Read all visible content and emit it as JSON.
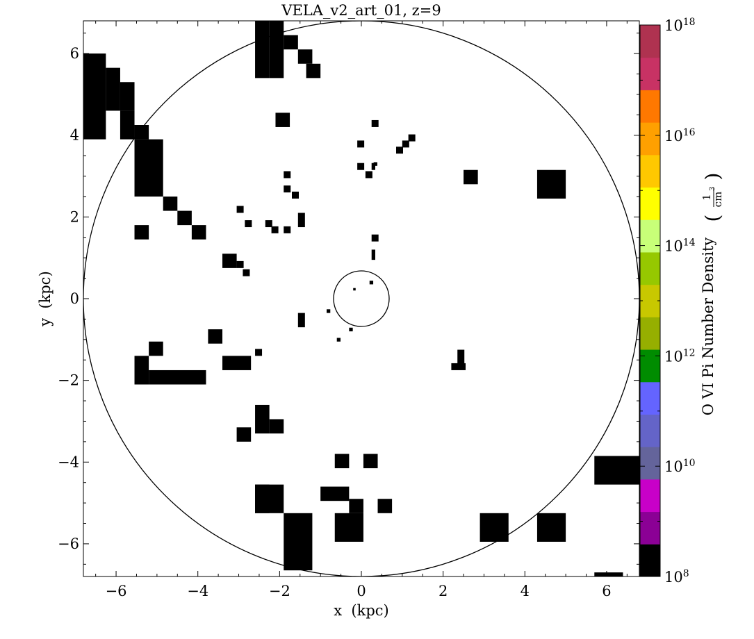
{
  "chart_data": {
    "type": "heatmap",
    "title": "VELA_v2_art_01, z=9",
    "xlabel": "x  (kpc)",
    "ylabel": "y  (kpc)",
    "xlim": [
      -6.8,
      6.8
    ],
    "ylim": [
      -6.8,
      6.8
    ],
    "x_ticks": [
      -6,
      -4,
      -2,
      0,
      2,
      4,
      6
    ],
    "y_ticks": [
      -6,
      -4,
      -2,
      0,
      2,
      4,
      6
    ],
    "x_tick_labels": [
      "−6",
      "−4",
      "−2",
      "0",
      "2",
      "4",
      "6"
    ],
    "y_tick_labels": [
      "−6",
      "−4",
      "−2",
      "0",
      "2",
      "4",
      "6"
    ],
    "colorbar": {
      "label": "O VI Pi Number Density",
      "unit_numerator": "1",
      "unit_denominator": "cm",
      "unit_exponent": "3",
      "scale": "log",
      "range": [
        100000000.0,
        1e+18
      ],
      "ticks": [
        {
          "value": 8,
          "base": "10",
          "exp": "8"
        },
        {
          "value": 10,
          "base": "10",
          "exp": "10"
        },
        {
          "value": 12,
          "base": "10",
          "exp": "12"
        },
        {
          "value": 14,
          "base": "10",
          "exp": "14"
        },
        {
          "value": 16,
          "base": "10",
          "exp": "16"
        },
        {
          "value": 18,
          "base": "10",
          "exp": "18"
        }
      ],
      "colors": [
        "#000000",
        "#8b0095",
        "#c800c8",
        "#64649b",
        "#6464c8",
        "#6464ff",
        "#008c00",
        "#96af00",
        "#c8c800",
        "#96c800",
        "#c8ff78",
        "#ffff00",
        "#ffc800",
        "#ffa000",
        "#ff7800",
        "#c83264",
        "#af3250"
      ]
    },
    "circles": [
      {
        "cx": 0,
        "cy": 0,
        "r": 6.8
      },
      {
        "cx": 0,
        "cy": 0,
        "r": 0.68
      }
    ],
    "cells": [
      [
        -2.6,
        5.4,
        0.35,
        1.4
      ],
      [
        -2.25,
        5.4,
        0.35,
        1.4
      ],
      [
        -1.9,
        6.1,
        0.35,
        0.35
      ],
      [
        -1.55,
        5.75,
        0.35,
        0.35
      ],
      [
        -1.35,
        5.4,
        0.35,
        0.35
      ],
      [
        -6.8,
        3.9,
        0.55,
        2.1
      ],
      [
        -6.25,
        4.6,
        0.35,
        1.05
      ],
      [
        -5.9,
        4.6,
        0.35,
        0.7
      ],
      [
        -5.9,
        3.9,
        0.35,
        0.7
      ],
      [
        -5.55,
        3.9,
        0.35,
        0.35
      ],
      [
        -5.55,
        2.5,
        0.7,
        1.4
      ],
      [
        -4.85,
        2.15,
        0.35,
        0.35
      ],
      [
        -4.5,
        1.8,
        0.35,
        0.35
      ],
      [
        -4.15,
        1.45,
        0.35,
        0.35
      ],
      [
        -5.55,
        1.45,
        0.35,
        0.35
      ],
      [
        -2.1,
        4.2,
        0.35,
        0.35
      ],
      [
        0.25,
        4.2,
        0.17,
        0.17
      ],
      [
        -0.1,
        3.7,
        0.17,
        0.17
      ],
      [
        -0.1,
        3.15,
        0.17,
        0.17
      ],
      [
        0.1,
        2.95,
        0.17,
        0.17
      ],
      [
        0.25,
        3.15,
        0.09,
        0.17
      ],
      [
        0.3,
        3.25,
        0.09,
        0.09
      ],
      [
        0.85,
        3.55,
        0.17,
        0.17
      ],
      [
        1.0,
        3.7,
        0.17,
        0.17
      ],
      [
        1.15,
        3.85,
        0.17,
        0.17
      ],
      [
        -1.9,
        2.95,
        0.17,
        0.17
      ],
      [
        -1.9,
        2.6,
        0.17,
        0.17
      ],
      [
        -1.7,
        2.45,
        0.17,
        0.17
      ],
      [
        -3.05,
        2.1,
        0.17,
        0.17
      ],
      [
        -2.85,
        1.75,
        0.17,
        0.17
      ],
      [
        -2.35,
        1.75,
        0.17,
        0.17
      ],
      [
        -2.2,
        1.6,
        0.17,
        0.17
      ],
      [
        -1.9,
        1.6,
        0.17,
        0.17
      ],
      [
        -1.55,
        1.75,
        0.17,
        0.35
      ],
      [
        0.25,
        1.4,
        0.17,
        0.17
      ],
      [
        0.25,
        0.95,
        0.09,
        0.25
      ],
      [
        2.5,
        2.8,
        0.35,
        0.35
      ],
      [
        4.3,
        2.45,
        0.7,
        0.7
      ],
      [
        -3.4,
        0.75,
        0.35,
        0.35
      ],
      [
        -3.05,
        0.75,
        0.17,
        0.17
      ],
      [
        -2.9,
        0.55,
        0.17,
        0.17
      ],
      [
        0.2,
        0.35,
        0.09,
        0.09
      ],
      [
        -0.2,
        0.2,
        0.06,
        0.06
      ],
      [
        -0.85,
        -0.35,
        0.09,
        0.09
      ],
      [
        -1.55,
        -0.7,
        0.17,
        0.35
      ],
      [
        -0.3,
        -0.8,
        0.09,
        0.09
      ],
      [
        -0.6,
        -1.05,
        0.09,
        0.09
      ],
      [
        -3.75,
        -1.1,
        0.35,
        0.35
      ],
      [
        -2.6,
        -1.4,
        0.17,
        0.17
      ],
      [
        -5.2,
        -1.4,
        0.35,
        0.35
      ],
      [
        -5.55,
        -2.1,
        0.35,
        0.7
      ],
      [
        -5.2,
        -2.1,
        1.4,
        0.35
      ],
      [
        -3.4,
        -1.75,
        0.7,
        0.35
      ],
      [
        2.2,
        -1.75,
        0.35,
        0.17
      ],
      [
        2.35,
        -1.6,
        0.17,
        0.35
      ],
      [
        -2.6,
        -3.3,
        0.35,
        0.7
      ],
      [
        -2.25,
        -3.3,
        0.35,
        0.35
      ],
      [
        -3.05,
        -3.5,
        0.35,
        0.35
      ],
      [
        -0.65,
        -4.15,
        0.35,
        0.35
      ],
      [
        0.05,
        -4.15,
        0.35,
        0.35
      ],
      [
        -2.6,
        -5.25,
        0.35,
        0.7
      ],
      [
        -2.6,
        -5.25,
        0.7,
        0.7
      ],
      [
        -1.9,
        -6.65,
        0.7,
        1.4
      ],
      [
        -1.0,
        -4.95,
        0.7,
        0.35
      ],
      [
        -0.3,
        -5.25,
        0.35,
        0.35
      ],
      [
        -0.65,
        -5.95,
        0.7,
        0.7
      ],
      [
        0.4,
        -5.25,
        0.35,
        0.35
      ],
      [
        2.9,
        -5.95,
        0.7,
        0.7
      ],
      [
        4.3,
        -5.95,
        0.7,
        0.7
      ],
      [
        5.7,
        -4.55,
        1.1,
        0.7
      ],
      [
        5.7,
        -6.8,
        0.7,
        0.1
      ]
    ]
  }
}
